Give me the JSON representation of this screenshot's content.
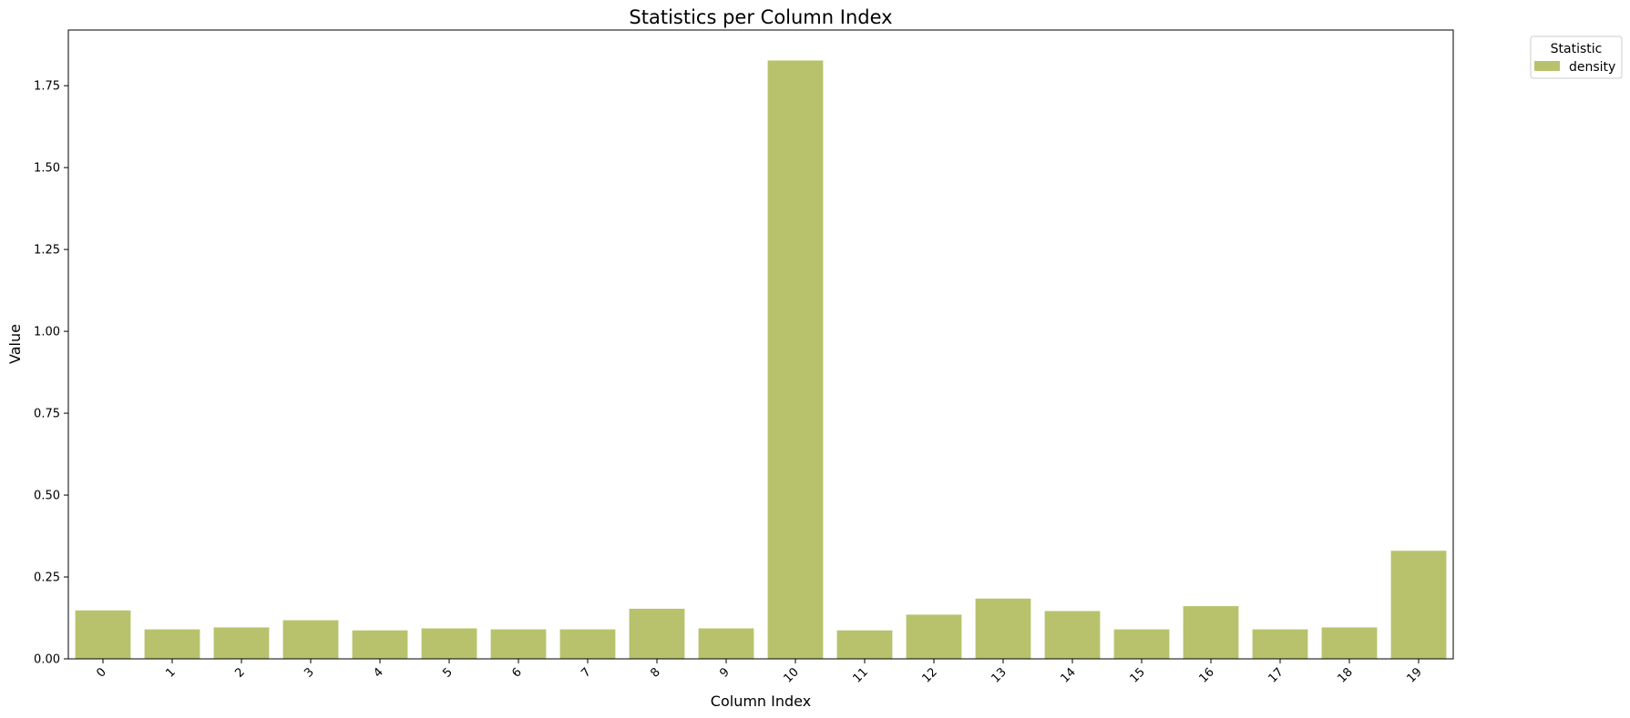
{
  "chart_data": {
    "type": "bar",
    "title": "Statistics per Column Index",
    "xlabel": "Column Index",
    "ylabel": "Value",
    "categories": [
      "0",
      "1",
      "2",
      "3",
      "4",
      "5",
      "6",
      "7",
      "8",
      "9",
      "10",
      "11",
      "12",
      "13",
      "14",
      "15",
      "16",
      "17",
      "18",
      "19"
    ],
    "series": [
      {
        "name": "density",
        "color": "#b8c26c",
        "values": [
          0.148,
          0.09,
          0.096,
          0.118,
          0.087,
          0.093,
          0.09,
          0.09,
          0.153,
          0.093,
          1.827,
          0.087,
          0.135,
          0.184,
          0.146,
          0.09,
          0.161,
          0.09,
          0.096,
          0.33
        ]
      }
    ],
    "ylim": [
      0,
      1.92
    ],
    "yticks": [
      "0.00",
      "0.25",
      "0.50",
      "0.75",
      "1.00",
      "1.25",
      "1.50",
      "1.75"
    ],
    "grid": false,
    "legend": {
      "title": "Statistic",
      "placement": "outside-top-right"
    }
  }
}
